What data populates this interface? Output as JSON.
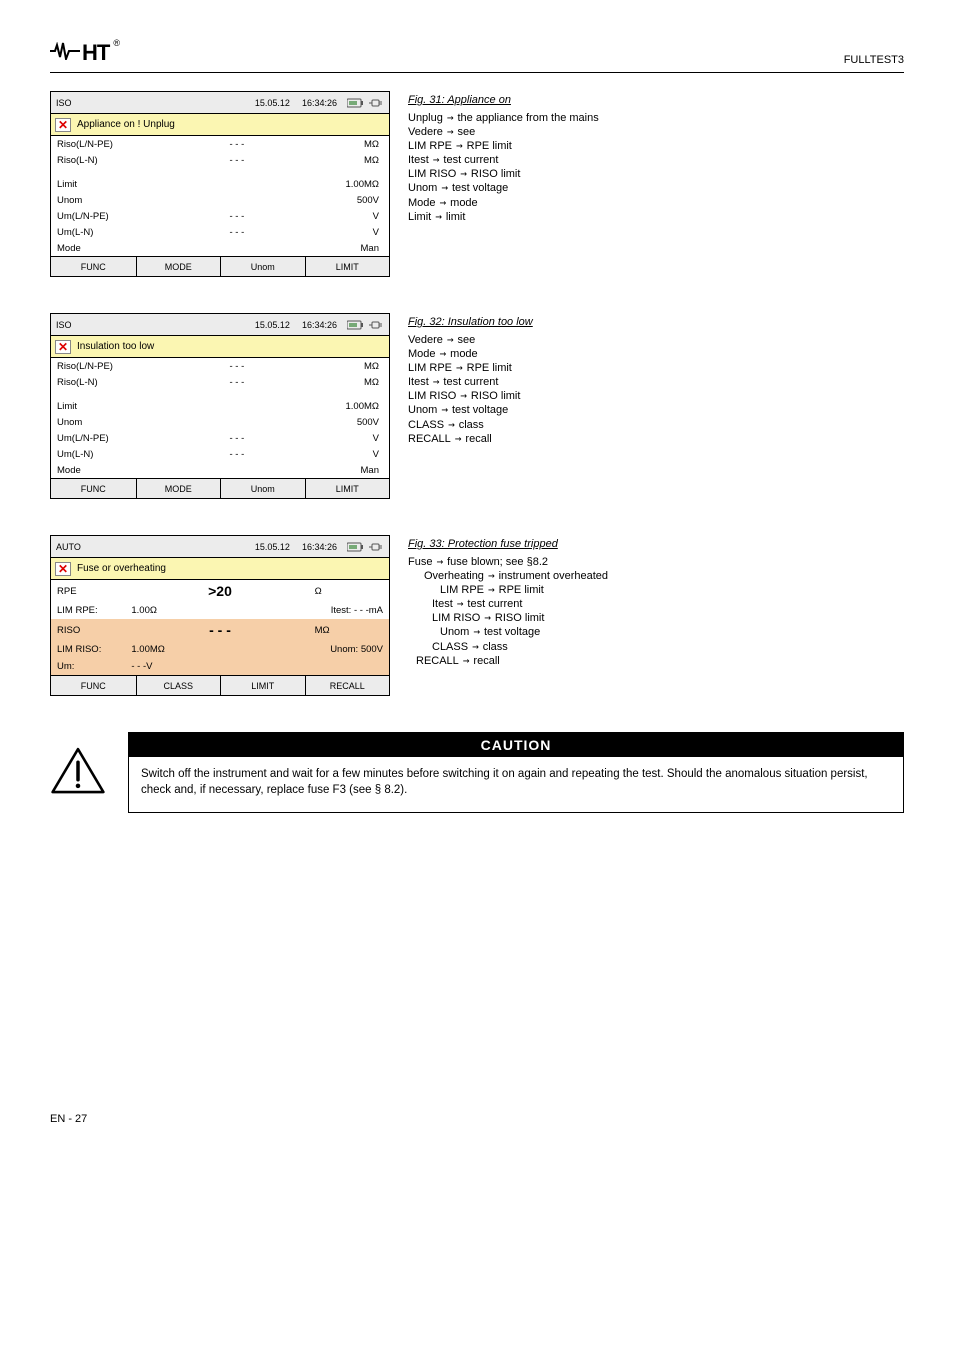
{
  "header": {
    "model": "FULLTEST3"
  },
  "colors": {
    "yellowRow": "#FBF6B2",
    "peach": "#f6cfa8",
    "greyBar": "#ececec",
    "redX": "#d00000"
  },
  "screens": {
    "s1": {
      "topbar": {
        "mode": "ISO",
        "date": "15.05.12",
        "time": "16:34:26"
      },
      "message": "Appliance on ! Unplug",
      "rowsTop": [
        {
          "lbl": "Riso(L/N-PE)",
          "mid": "- - -",
          "val": "MΩ"
        },
        {
          "lbl": "Riso(L-N)",
          "mid": "- - -",
          "val": "MΩ"
        }
      ],
      "rowsBottom": [
        {
          "lbl": "Limit",
          "mid": "",
          "val": "1.00MΩ"
        },
        {
          "lbl": "Unom",
          "mid": "",
          "val": "500V"
        },
        {
          "lbl": "Um(L/N-PE)",
          "mid": "- - -",
          "val": "V"
        },
        {
          "lbl": "Um(L-N)",
          "mid": "- - -",
          "val": "V"
        },
        {
          "lbl": "Mode",
          "mid": "",
          "val": "Man"
        }
      ],
      "footer": [
        "FUNC",
        "MODE",
        "Unom",
        "LIMIT"
      ]
    },
    "s2": {
      "topbar": {
        "mode": "ISO",
        "date": "15.05.12",
        "time": "16:34:26"
      },
      "message": "Insulation too low",
      "rowsTop": [
        {
          "lbl": "Riso(L/N-PE)",
          "mid": "- - -",
          "val": "MΩ"
        },
        {
          "lbl": "Riso(L-N)",
          "mid": "- - -",
          "val": "MΩ"
        }
      ],
      "rowsBottom": [
        {
          "lbl": "Limit",
          "mid": "",
          "val": "1.00MΩ"
        },
        {
          "lbl": "Unom",
          "mid": "",
          "val": "500V"
        },
        {
          "lbl": "Um(L/N-PE)",
          "mid": "- - -",
          "val": "V"
        },
        {
          "lbl": "Um(L-N)",
          "mid": "- - -",
          "val": "V"
        },
        {
          "lbl": "Mode",
          "mid": "",
          "val": "Man"
        }
      ],
      "footer": [
        "FUNC",
        "MODE",
        "Unom",
        "LIMIT"
      ]
    },
    "s3": {
      "topbar": {
        "mode": "AUTO",
        "date": "15.05.12",
        "time": "16:34:26"
      },
      "message": "Fuse or overheating",
      "big1": {
        "label": "RPE",
        "value": ">20",
        "unit": "Ω"
      },
      "sub1": [
        {
          "lbl": "LIM RPE:",
          "val": "1.00Ω",
          "r_lbl": "Itest:",
          "r_val": "- - -mA"
        }
      ],
      "big2": {
        "label": "RISO",
        "value": "- - -",
        "unit": "MΩ"
      },
      "sub2": [
        {
          "lbl": "LIM RISO:",
          "val": "1.00MΩ",
          "r_lbl": "Unom:",
          "r_val": "500V"
        },
        {
          "lbl": "Um:",
          "val": "- - -V",
          "r_lbl": "",
          "r_val": ""
        }
      ],
      "footer": [
        "FUNC",
        "CLASS",
        "LIMIT",
        "RECALL"
      ]
    }
  },
  "side1": {
    "title": "Fig. 31: Appliance on",
    "lines": [
      {
        "pfx": "Unplug",
        "arr": "→",
        "desc": "the appliance from the mains"
      },
      {
        "pfx": "Vedere",
        "arr": "→",
        "desc": "see"
      },
      {
        "pfx": "LIM RPE",
        "arr": "→",
        "desc": "RPE limit"
      },
      {
        "pfx": "Itest",
        "arr": "→",
        "desc": "test current"
      },
      {
        "pfx": "LIM RISO",
        "arr": "→",
        "desc": "RISO limit"
      },
      {
        "pfx": "Unom",
        "arr": "→",
        "desc": "test voltage"
      },
      {
        "pfx": "Mode",
        "arr": "→",
        "desc": "mode"
      },
      {
        "pfx": "Limit",
        "arr": "→",
        "desc": "limit"
      }
    ]
  },
  "side2": {
    "title": "Fig. 32: Insulation too low",
    "lines": [
      {
        "pfx": "Vedere",
        "arr": "→",
        "desc": "see"
      },
      {
        "pfx": "Mode",
        "arr": "→",
        "desc": "mode"
      },
      {
        "pfx": "LIM RPE",
        "arr": "→",
        "desc": "RPE limit"
      },
      {
        "pfx": "Itest",
        "arr": "→",
        "desc": "test current"
      },
      {
        "pfx": "LIM RISO",
        "arr": "→",
        "desc": "RISO limit"
      },
      {
        "pfx": "Unom",
        "arr": "→",
        "desc": "test voltage"
      },
      {
        "pfx": "CLASS",
        "arr": "→",
        "desc": "class"
      },
      {
        "pfx": "RECALL",
        "arr": "→",
        "desc": "recall"
      }
    ]
  },
  "side3": {
    "title": "Fig. 33: Protection fuse tripped",
    "lines": [
      {
        "pfx": "Fuse",
        "arr": "→",
        "desc": "fuse blown; see §8.2"
      },
      {
        "pfx": "Overheating",
        "arr": "→",
        "desc": "instrument overheated"
      },
      {
        "pfx": "LIM RPE",
        "arr": "→",
        "desc": "RPE limit"
      },
      {
        "pfx": "Itest",
        "arr": "→",
        "desc": "test current"
      },
      {
        "pfx": "LIM RISO",
        "arr": "→",
        "desc": "RISO limit"
      },
      {
        "pfx": "Unom",
        "arr": "→",
        "desc": "test voltage"
      },
      {
        "pfx": "CLASS",
        "arr": "→",
        "desc": "class"
      },
      {
        "pfx": "RECALL",
        "arr": "→",
        "desc": "recall"
      }
    ],
    "indents": [
      0,
      2,
      4,
      3,
      3,
      4,
      3,
      1
    ]
  },
  "caution": {
    "heading": "CAUTION",
    "body": "Switch off the instrument and wait for a few minutes before switching it on again and repeating the test. Should the anomalous situation persist, check and, if necessary, replace fuse F3 (see § 8.2)."
  },
  "pageFooter": {
    "left": "EN - 27",
    "right": ""
  }
}
